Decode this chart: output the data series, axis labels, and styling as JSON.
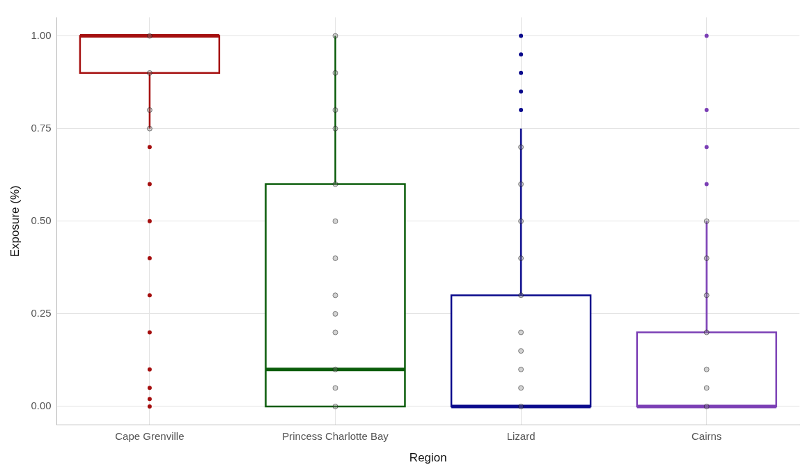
{
  "chart_data": {
    "type": "box",
    "xlabel": "Region",
    "ylabel": "Exposure (%)",
    "categories": [
      "Cape Grenville",
      "Princess Charlotte Bay",
      "Lizard",
      "Cairns"
    ],
    "colors": [
      "#a50f0f",
      "#0a5c0a",
      "#0a0a8c",
      "#7b3fb5"
    ],
    "boxes": [
      {
        "low": 0.75,
        "q1": 0.9,
        "median": 1.0,
        "q3": 1.0,
        "high": 1.0,
        "outliers": [
          0.0,
          0.02,
          0.05,
          0.1,
          0.2,
          0.3,
          0.4,
          0.5,
          0.6,
          0.7
        ]
      },
      {
        "low": 0.0,
        "q1": 0.0,
        "median": 0.1,
        "q3": 0.6,
        "high": 1.0
      },
      {
        "low": 0.0,
        "q1": 0.0,
        "median": 0.0,
        "q3": 0.3,
        "high": 0.75,
        "outliers": [
          0.8,
          0.85,
          0.9,
          0.95,
          1.0
        ]
      },
      {
        "low": 0.0,
        "q1": 0.0,
        "median": 0.0,
        "q3": 0.2,
        "high": 0.5,
        "outliers": [
          0.6,
          0.7,
          0.8,
          1.0
        ]
      }
    ],
    "series": [
      {
        "type": "scatter",
        "color": "#808080",
        "x": [
          "Cape Grenville",
          "Cape Grenville",
          "Cape Grenville",
          "Cape Grenville",
          "Princess Charlotte Bay",
          "Princess Charlotte Bay",
          "Princess Charlotte Bay",
          "Princess Charlotte Bay",
          "Princess Charlotte Bay",
          "Princess Charlotte Bay",
          "Princess Charlotte Bay",
          "Princess Charlotte Bay",
          "Princess Charlotte Bay",
          "Princess Charlotte Bay",
          "Princess Charlotte Bay",
          "Princess Charlotte Bay",
          "Princess Charlotte Bay",
          "Lizard",
          "Lizard",
          "Lizard",
          "Lizard",
          "Lizard",
          "Lizard",
          "Lizard",
          "Lizard",
          "Lizard",
          "Lizard",
          "Cairns",
          "Cairns",
          "Cairns",
          "Cairns",
          "Cairns",
          "Cairns",
          "Cairns"
        ],
        "values": [
          0.75,
          0.8,
          0.9,
          1.0,
          0,
          0.05,
          0.1,
          0.2,
          0.25,
          0.3,
          0.4,
          0.5,
          0.6,
          0.75,
          0.8,
          0.9,
          1.0,
          0,
          0.05,
          0.1,
          0.15,
          0.2,
          0.3,
          0.4,
          0.5,
          0.6,
          0.7,
          0,
          0.05,
          0.1,
          0.2,
          0.3,
          0.4,
          0.5
        ]
      }
    ],
    "ylim": [
      -0.05,
      1.05
    ],
    "yticks": [
      {
        "value": 0,
        "label": "0.00"
      },
      {
        "value": 0.25,
        "label": "0.25"
      },
      {
        "value": 0.5,
        "label": "0.50"
      },
      {
        "value": 0.75,
        "label": "0.75"
      },
      {
        "value": 1.0,
        "label": "1.00"
      }
    ],
    "grid": true,
    "legend": false,
    "marker": "circle"
  }
}
